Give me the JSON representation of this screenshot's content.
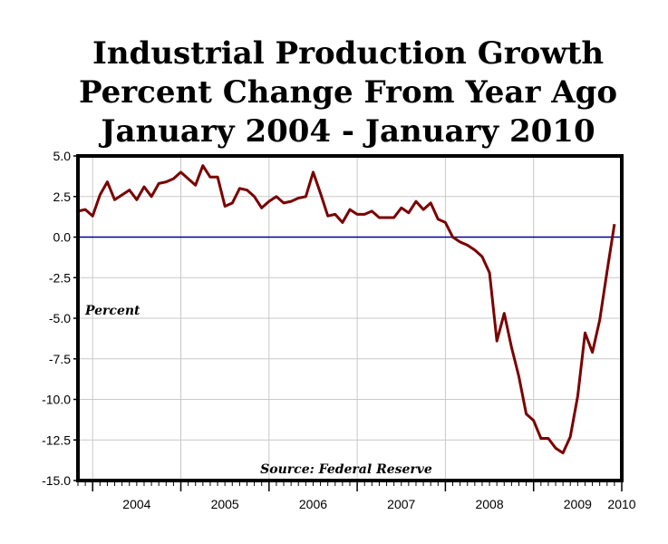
{
  "chart_data": {
    "type": "line",
    "title": [
      "Industrial Production Growth",
      "Percent Change From Year Ago",
      "January 2004 - January 2010"
    ],
    "ylabel": "Percent",
    "source": "Source: Federal Reserve",
    "ylim": [
      -15.0,
      5.0
    ],
    "yticks": [
      "5.0",
      "2.5",
      "0.0",
      "-2.5",
      "-5.0",
      "-7.5",
      "-10.0",
      "-12.5",
      "-15.0"
    ],
    "xlim": [
      "2003-11",
      "2010-01"
    ],
    "xticks": [
      "2004",
      "2005",
      "2006",
      "2007",
      "2008",
      "2009",
      "2010"
    ],
    "grid": true,
    "zero_line_color": "#00008b",
    "series": [
      {
        "color": "#7a0000",
        "x": [
          "2003-11",
          "2003-12",
          "2004-01",
          "2004-02",
          "2004-03",
          "2004-04",
          "2004-05",
          "2004-06",
          "2004-07",
          "2004-08",
          "2004-09",
          "2004-10",
          "2004-11",
          "2004-12",
          "2005-01",
          "2005-02",
          "2005-03",
          "2005-04",
          "2005-05",
          "2005-06",
          "2005-07",
          "2005-08",
          "2005-09",
          "2005-10",
          "2005-11",
          "2005-12",
          "2006-01",
          "2006-02",
          "2006-03",
          "2006-04",
          "2006-05",
          "2006-06",
          "2006-07",
          "2006-08",
          "2006-09",
          "2006-10",
          "2006-11",
          "2006-12",
          "2007-01",
          "2007-02",
          "2007-03",
          "2007-04",
          "2007-05",
          "2007-06",
          "2007-07",
          "2007-08",
          "2007-09",
          "2007-10",
          "2007-11",
          "2007-12",
          "2008-01",
          "2008-02",
          "2008-03",
          "2008-04",
          "2008-05",
          "2008-06",
          "2008-07",
          "2008-08",
          "2008-09",
          "2008-10",
          "2008-11",
          "2008-12",
          "2009-01",
          "2009-02",
          "2009-03",
          "2009-04",
          "2009-05",
          "2009-06",
          "2009-07",
          "2009-08",
          "2009-09",
          "2009-10",
          "2009-11",
          "2009-12"
        ],
        "y": [
          1.6,
          1.7,
          1.3,
          2.6,
          3.4,
          2.3,
          2.6,
          2.9,
          2.3,
          3.1,
          2.5,
          3.3,
          3.4,
          3.6,
          4.0,
          3.6,
          3.2,
          4.4,
          3.7,
          3.7,
          1.9,
          2.1,
          3.0,
          2.9,
          2.5,
          1.8,
          2.2,
          2.5,
          2.1,
          2.2,
          2.4,
          2.5,
          4.0,
          2.7,
          1.3,
          1.4,
          0.9,
          1.7,
          1.4,
          1.4,
          1.6,
          1.2,
          1.2,
          1.2,
          1.8,
          1.5,
          2.2,
          1.7,
          2.1,
          1.1,
          0.9,
          0.0,
          -0.3,
          -0.5,
          -0.8,
          -1.2,
          -2.2,
          -6.4,
          -4.7,
          -6.8,
          -8.6,
          -10.9,
          -11.3,
          -12.4,
          -12.4,
          -13.0,
          -13.3,
          -12.3,
          -9.8,
          -5.9,
          -7.1,
          -5.1,
          -2.1,
          0.8
        ]
      }
    ]
  }
}
